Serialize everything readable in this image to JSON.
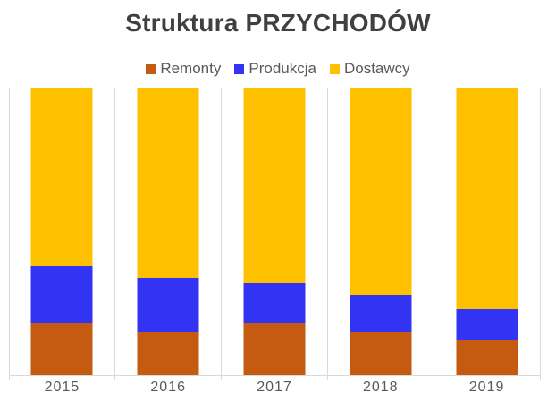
{
  "title": "Struktura PRZYCHODÓW",
  "legend": {
    "position": "top",
    "items": [
      {
        "label": "Remonty",
        "color": "#C55A11"
      },
      {
        "label": "Produkcja",
        "color": "#3333F3"
      },
      {
        "label": "Dostawcy",
        "color": "#FFC000"
      }
    ]
  },
  "chart_data": {
    "type": "bar",
    "subtype": "stacked-100-percent-columns",
    "title": "Struktura PRZYCHODÓW",
    "categories": [
      "2015",
      "2016",
      "2017",
      "2018",
      "2019"
    ],
    "series": [
      {
        "name": "Remonty",
        "color": "#C55A11",
        "values": [
          18,
          15,
          18,
          15,
          12
        ]
      },
      {
        "name": "Produkcja",
        "color": "#3333F3",
        "values": [
          20,
          19,
          14,
          13,
          11
        ]
      },
      {
        "name": "Dostawcy",
        "color": "#FFC000",
        "values": [
          62,
          66,
          68,
          72,
          77
        ]
      }
    ],
    "values_unit": "percent",
    "stack_order_bottom_to_top": [
      "Remonty",
      "Produkcja",
      "Dostawcy"
    ],
    "xlabel": "",
    "ylabel": "",
    "ylim": [
      0,
      100
    ],
    "y_axis_labels_visible": false,
    "grid": "vertical category separator lines only",
    "legend_position": "top"
  },
  "colors": {
    "background": "#FFFFFF",
    "title_text": "#404040",
    "axis_text": "#595959",
    "legend_text": "#595959",
    "gridline": "#D9D9D9"
  }
}
